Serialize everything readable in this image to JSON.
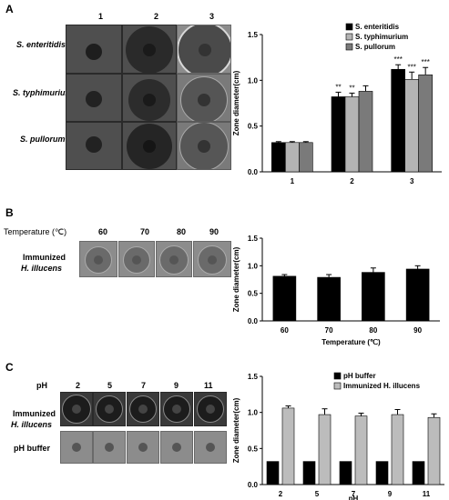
{
  "panels": {
    "A": {
      "label": "A",
      "columns": [
        "1",
        "2",
        "3"
      ],
      "rows": [
        "S. enteritidis",
        "S. typhimurium",
        "S. pullorum"
      ]
    },
    "B": {
      "label": "B",
      "row_header": "Temperature (℃)",
      "columns": [
        "60",
        "70",
        "80",
        "90"
      ],
      "row_label_line1": "Immunized",
      "row_label_line2": "H. illucens"
    },
    "C": {
      "label": "C",
      "row_header": "pH",
      "columns": [
        "2",
        "5",
        "7",
        "9",
        "11"
      ],
      "row1_line1": "Immunized",
      "row1_line2": "H. illucens",
      "row2": "pH buffer"
    }
  },
  "chart_data": [
    {
      "type": "bar",
      "categories": [
        "1",
        "2",
        "3"
      ],
      "series": [
        {
          "name": "S. enteritidis",
          "values": [
            0.32,
            0.82,
            1.12
          ],
          "errors": [
            0.01,
            0.05,
            0.05
          ],
          "color": "#000000",
          "stars": [
            "",
            "**",
            "***"
          ]
        },
        {
          "name": "S. typhimurium",
          "values": [
            0.32,
            0.82,
            1.01
          ],
          "errors": [
            0.01,
            0.04,
            0.08
          ],
          "color": "#b4b4b4",
          "stars": [
            "",
            "**",
            "***"
          ]
        },
        {
          "name": "S. pullorum",
          "values": [
            0.32,
            0.88,
            1.06
          ],
          "errors": [
            0.01,
            0.06,
            0.08
          ],
          "color": "#7a7a7a",
          "stars": [
            "",
            "",
            "***"
          ]
        }
      ],
      "xlabel": "",
      "ylabel": "Zone diameter(cm)",
      "ylim": [
        0,
        1.5
      ],
      "yticks": [
        "0.0",
        "0.5",
        "1.0",
        "1.5"
      ],
      "legend": "top-right"
    },
    {
      "type": "bar",
      "categories": [
        "60",
        "70",
        "80",
        "90"
      ],
      "series": [
        {
          "values": [
            0.81,
            0.79,
            0.88,
            0.94
          ],
          "errors": [
            0.03,
            0.05,
            0.08,
            0.06
          ],
          "color": "#000000"
        }
      ],
      "xlabel": "Temperature (℃)",
      "ylabel": "Zone diameter(cm)",
      "ylim": [
        0,
        1.5
      ],
      "yticks": [
        "0.0",
        "0.5",
        "1.0",
        "1.5"
      ]
    },
    {
      "type": "bar",
      "categories": [
        "2",
        "5",
        "7",
        "9",
        "11"
      ],
      "series": [
        {
          "name": "pH buffer",
          "values": [
            0.32,
            0.32,
            0.32,
            0.32,
            0.32
          ],
          "errors": [
            0,
            0,
            0,
            0,
            0
          ],
          "color": "#000000"
        },
        {
          "name": "Immunized H. illucens",
          "values": [
            1.06,
            0.97,
            0.95,
            0.97,
            0.93
          ],
          "errors": [
            0.03,
            0.08,
            0.04,
            0.07,
            0.05
          ],
          "color": "#bcbcbc"
        }
      ],
      "xlabel": "pH",
      "ylabel": "Zone diameter(cm)",
      "ylim": [
        0,
        1.5
      ],
      "yticks": [
        "0.0",
        "0.5",
        "1.0",
        "1.5"
      ],
      "legend": "top-right"
    }
  ]
}
